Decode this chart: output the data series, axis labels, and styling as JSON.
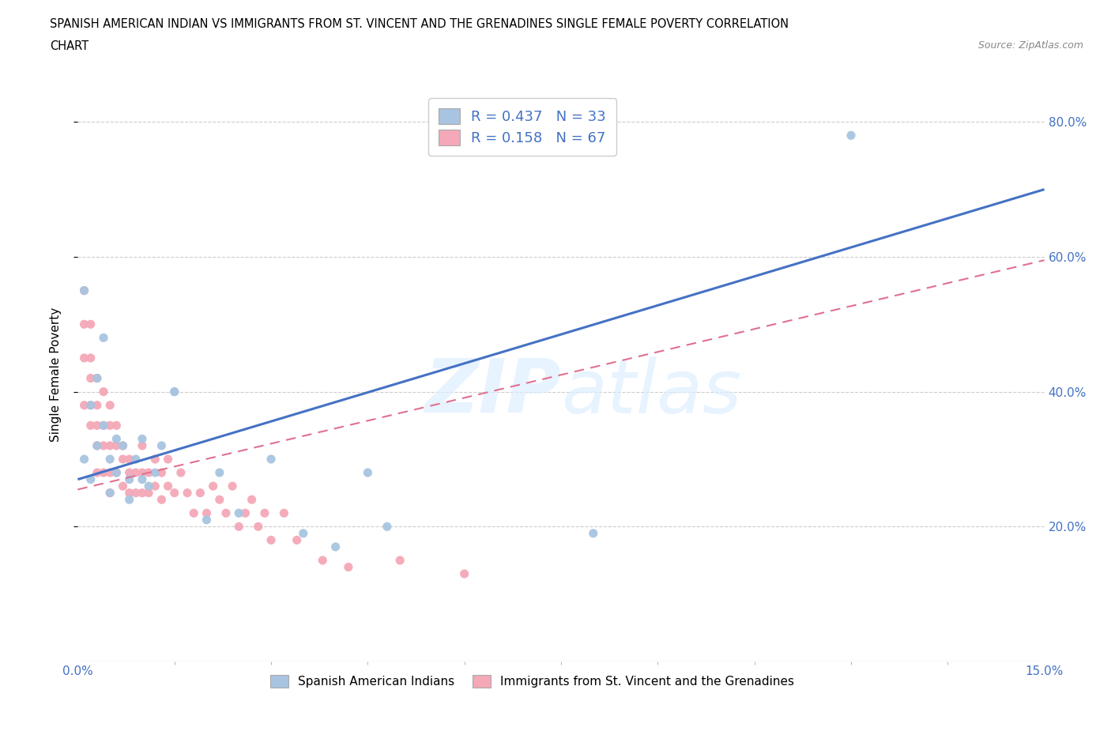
{
  "title_line1": "SPANISH AMERICAN INDIAN VS IMMIGRANTS FROM ST. VINCENT AND THE GRENADINES SINGLE FEMALE POVERTY CORRELATION",
  "title_line2": "CHART",
  "source": "Source: ZipAtlas.com",
  "ylabel": "Single Female Poverty",
  "x_min": 0.0,
  "x_max": 0.15,
  "y_min": 0.0,
  "y_max": 0.85,
  "r_blue": 0.437,
  "n_blue": 33,
  "r_pink": 0.158,
  "n_pink": 67,
  "blue_color": "#a8c4e0",
  "pink_color": "#f4a8b8",
  "line_blue_color": "#4472c4",
  "line_pink_color": "#e07090",
  "watermark": "ZIPatlas",
  "legend_blue_label": "Spanish American Indians",
  "legend_pink_label": "Immigrants from St. Vincent and the Grenadines",
  "blue_line_x0": 0.0,
  "blue_line_y0": 0.27,
  "blue_line_x1": 0.15,
  "blue_line_y1": 0.7,
  "pink_line_x0": 0.0,
  "pink_line_y0": 0.255,
  "pink_line_x1": 0.15,
  "pink_line_y1": 0.595,
  "blue_scatter_x": [
    0.001,
    0.001,
    0.002,
    0.003,
    0.003,
    0.004,
    0.005,
    0.005,
    0.006,
    0.006,
    0.007,
    0.008,
    0.008,
    0.009,
    0.01,
    0.011,
    0.012,
    0.013,
    0.015,
    0.02,
    0.022,
    0.025,
    0.03,
    0.035,
    0.04,
    0.045,
    0.048,
    0.08,
    0.12,
    0.002,
    0.004,
    0.01,
    0.015
  ],
  "blue_scatter_y": [
    0.55,
    0.3,
    0.38,
    0.42,
    0.32,
    0.48,
    0.3,
    0.25,
    0.33,
    0.28,
    0.32,
    0.27,
    0.24,
    0.3,
    0.33,
    0.26,
    0.28,
    0.32,
    0.4,
    0.21,
    0.28,
    0.22,
    0.3,
    0.19,
    0.17,
    0.28,
    0.2,
    0.19,
    0.78,
    0.27,
    0.35,
    0.27,
    0.4
  ],
  "pink_scatter_x": [
    0.001,
    0.001,
    0.001,
    0.001,
    0.002,
    0.002,
    0.002,
    0.002,
    0.002,
    0.003,
    0.003,
    0.003,
    0.003,
    0.003,
    0.004,
    0.004,
    0.004,
    0.004,
    0.005,
    0.005,
    0.005,
    0.005,
    0.005,
    0.006,
    0.006,
    0.006,
    0.007,
    0.007,
    0.007,
    0.008,
    0.008,
    0.008,
    0.009,
    0.009,
    0.01,
    0.01,
    0.01,
    0.011,
    0.011,
    0.012,
    0.012,
    0.013,
    0.013,
    0.014,
    0.014,
    0.015,
    0.016,
    0.017,
    0.018,
    0.019,
    0.02,
    0.021,
    0.022,
    0.023,
    0.024,
    0.025,
    0.026,
    0.027,
    0.028,
    0.029,
    0.03,
    0.032,
    0.034,
    0.038,
    0.042,
    0.05,
    0.06
  ],
  "pink_scatter_y": [
    0.55,
    0.5,
    0.45,
    0.38,
    0.5,
    0.45,
    0.42,
    0.38,
    0.35,
    0.42,
    0.38,
    0.35,
    0.32,
    0.28,
    0.4,
    0.35,
    0.32,
    0.28,
    0.38,
    0.35,
    0.32,
    0.28,
    0.25,
    0.35,
    0.32,
    0.28,
    0.32,
    0.3,
    0.26,
    0.3,
    0.28,
    0.25,
    0.28,
    0.25,
    0.32,
    0.28,
    0.25,
    0.28,
    0.25,
    0.3,
    0.26,
    0.28,
    0.24,
    0.3,
    0.26,
    0.25,
    0.28,
    0.25,
    0.22,
    0.25,
    0.22,
    0.26,
    0.24,
    0.22,
    0.26,
    0.2,
    0.22,
    0.24,
    0.2,
    0.22,
    0.18,
    0.22,
    0.18,
    0.15,
    0.14,
    0.15,
    0.13
  ]
}
